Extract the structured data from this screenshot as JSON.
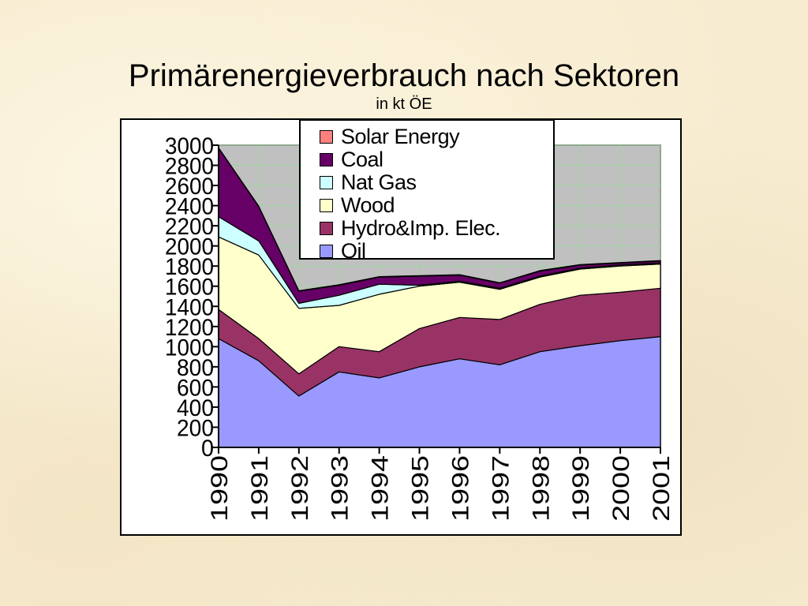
{
  "slide": {
    "title": "Primärenergieverbrauch nach Sektoren",
    "subtitle": "in kt ÖE"
  },
  "colors": {
    "plot_background": "#c0c0c0",
    "gridline": "#9fd59f",
    "oil": "#9999ff",
    "hydro": "#993366",
    "wood": "#ffffcc",
    "nat_gas": "#ccffff",
    "coal": "#660066",
    "solar": "#ff8080"
  },
  "chart_data": {
    "type": "area",
    "stacked": true,
    "title": "Primärenergieverbrauch nach Sektoren",
    "subtitle": "in kt ÖE",
    "xlabel": "",
    "ylabel": "",
    "categories": [
      "1990",
      "1991",
      "1992",
      "1993",
      "1994",
      "1995",
      "1996",
      "1997",
      "1998",
      "1999",
      "2000",
      "2001"
    ],
    "ylim": [
      0,
      3000
    ],
    "yticks": [
      0,
      200,
      400,
      600,
      800,
      1000,
      1200,
      1400,
      1600,
      1800,
      2000,
      2200,
      2400,
      2600,
      2800,
      3000
    ],
    "grid": true,
    "legend_position": "top-center",
    "series": [
      {
        "name": "Oil",
        "color": "#9999ff",
        "values": [
          1080,
          860,
          510,
          750,
          690,
          800,
          880,
          820,
          950,
          1010,
          1060,
          1100
        ]
      },
      {
        "name": "Hydro&Imp. Elec.",
        "color": "#993366",
        "values": [
          290,
          220,
          220,
          250,
          260,
          380,
          410,
          450,
          470,
          500,
          480,
          480
        ]
      },
      {
        "name": "Wood",
        "color": "#ffffcc",
        "values": [
          720,
          830,
          650,
          410,
          570,
          420,
          350,
          300,
          270,
          260,
          260,
          240
        ]
      },
      {
        "name": "Nat Gas",
        "color": "#ccffff",
        "values": [
          200,
          140,
          50,
          100,
          100,
          10,
          10,
          10,
          10,
          10,
          10,
          10
        ]
      },
      {
        "name": "Coal",
        "color": "#660066",
        "values": [
          680,
          340,
          120,
          100,
          70,
          90,
          60,
          50,
          50,
          30,
          20,
          20
        ]
      },
      {
        "name": "Solar Energy",
        "color": "#ff8080",
        "values": [
          5,
          5,
          5,
          5,
          5,
          5,
          5,
          5,
          5,
          5,
          5,
          5
        ]
      }
    ],
    "legend_order": [
      "Solar Energy",
      "Coal",
      "Nat Gas",
      "Wood",
      "Hydro&Imp. Elec.",
      "Oil"
    ]
  }
}
